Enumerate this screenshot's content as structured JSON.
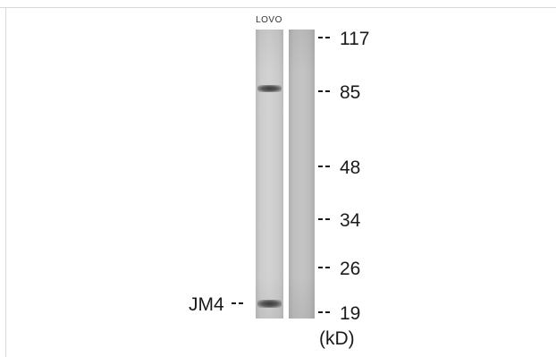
{
  "lane_label": "LOVO",
  "protein_label": "JM4",
  "unit_label": "(kD)",
  "markers": [
    {
      "label": "117"
    },
    {
      "label": "85"
    },
    {
      "label": "48"
    },
    {
      "label": "34"
    },
    {
      "label": "26"
    },
    {
      "label": "19"
    }
  ],
  "colors": {
    "background": "#ffffff",
    "band": "#3b3b3b",
    "lane_1": "#cdcdcd",
    "lane_2": "#c0c0c0",
    "text": "#1a1a1a"
  }
}
